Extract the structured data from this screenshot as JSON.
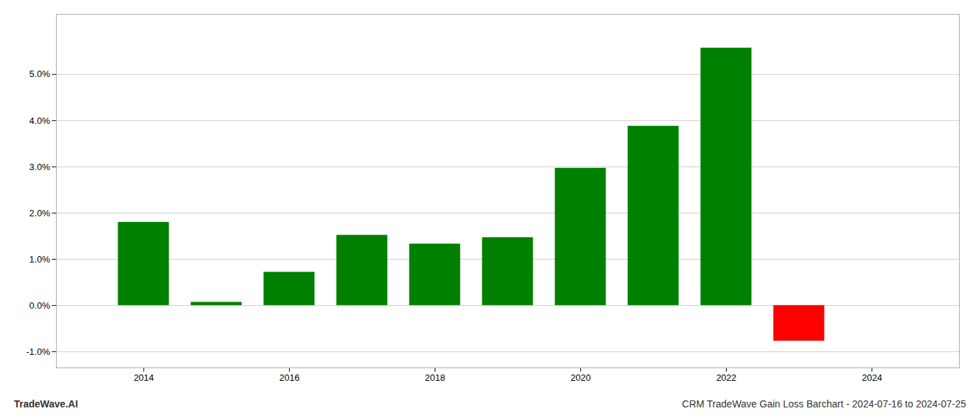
{
  "chart_data": {
    "type": "bar",
    "title": "CRM TradeWave Gain Loss Barchart - 2024-07-16 to 2024-07-25",
    "annotations": [
      "TradeWave.AI"
    ],
    "x": [
      2014,
      2015,
      2016,
      2017,
      2018,
      2019,
      2020,
      2021,
      2022,
      2023
    ],
    "values": [
      1.8,
      0.07,
      0.72,
      1.52,
      1.33,
      1.47,
      2.97,
      3.88,
      5.57,
      -0.77
    ],
    "colors": [
      "#008000",
      "#008000",
      "#008000",
      "#008000",
      "#008000",
      "#008000",
      "#008000",
      "#008000",
      "#008000",
      "#ff0000"
    ],
    "xlim": [
      2012.8,
      2025.2
    ],
    "xticks": [
      2014,
      2016,
      2018,
      2020,
      2022,
      2024
    ],
    "ylim": [
      -1.35,
      6.3
    ],
    "yticks": [
      {
        "value": -1.0,
        "label": "-1.0%"
      },
      {
        "value": 0.0,
        "label": "0.0%"
      },
      {
        "value": 1.0,
        "label": "1.0%"
      },
      {
        "value": 2.0,
        "label": "2.0%"
      },
      {
        "value": 3.0,
        "label": "3.0%"
      },
      {
        "value": 4.0,
        "label": "4.0%"
      },
      {
        "value": 5.0,
        "label": "5.0%"
      }
    ],
    "grid": true
  }
}
